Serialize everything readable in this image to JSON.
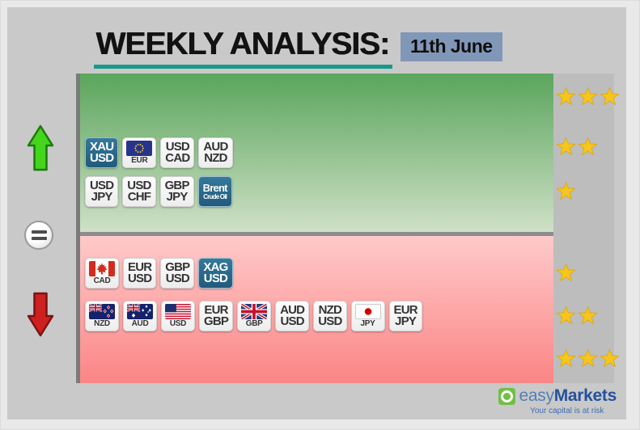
{
  "header": {
    "title": "WEEKLY ANALYSIS:",
    "date": "11th June"
  },
  "rows": [
    {
      "section": "bullish",
      "stars": 3,
      "badges": []
    },
    {
      "section": "bullish",
      "stars": 2,
      "badges": [
        {
          "type": "metal",
          "line1": "XAU",
          "line2": "USD"
        },
        {
          "type": "flag",
          "flag": "EUR",
          "label": "EUR"
        },
        {
          "type": "pair",
          "line1": "USD",
          "line2": "CAD"
        },
        {
          "type": "pair",
          "line1": "AUD",
          "line2": "NZD"
        }
      ]
    },
    {
      "section": "bullish",
      "stars": 1,
      "badges": [
        {
          "type": "pair",
          "line1": "USD",
          "line2": "JPY"
        },
        {
          "type": "pair",
          "line1": "USD",
          "line2": "CHF"
        },
        {
          "type": "pair",
          "line1": "GBP",
          "line2": "JPY"
        },
        {
          "type": "commodity",
          "line1": "Brent",
          "line2": "Crude Oil"
        }
      ]
    },
    {
      "section": "bearish",
      "stars": 1,
      "badges": [
        {
          "type": "flag",
          "flag": "CAD",
          "label": "CAD"
        },
        {
          "type": "pair",
          "line1": "EUR",
          "line2": "USD"
        },
        {
          "type": "pair",
          "line1": "GBP",
          "line2": "USD"
        },
        {
          "type": "metal",
          "line1": "XAG",
          "line2": "USD"
        }
      ]
    },
    {
      "section": "bearish",
      "stars": 2,
      "badges": [
        {
          "type": "flag",
          "flag": "NZD",
          "label": "NZD"
        },
        {
          "type": "flag",
          "flag": "AUD",
          "label": "AUD"
        },
        {
          "type": "flag",
          "flag": "USD",
          "label": "USD"
        },
        {
          "type": "pair",
          "line1": "EUR",
          "line2": "GBP"
        },
        {
          "type": "flag",
          "flag": "GBP",
          "label": "GBP"
        },
        {
          "type": "pair",
          "line1": "AUD",
          "line2": "USD"
        },
        {
          "type": "pair",
          "line1": "NZD",
          "line2": "USD"
        },
        {
          "type": "flag",
          "flag": "JPY",
          "label": "JPY"
        },
        {
          "type": "pair",
          "line1": "EUR",
          "line2": "JPY"
        }
      ]
    },
    {
      "section": "bearish",
      "stars": 3,
      "badges": []
    }
  ],
  "footer": {
    "brand_easy": "easy",
    "brand_markets": "Markets",
    "tagline": "Your capital is at risk"
  },
  "colors": {
    "canvas": "#c9c9c9",
    "accent_teal": "#18998b",
    "date_bg": "#8197b7",
    "bullish_top": "#5aa55c",
    "bullish_bottom": "#cfe0c6",
    "bearish_top": "#ffcaca",
    "bearish_bottom": "#fb8585",
    "divider": "#8f8a8f",
    "star_col": "#bdbdbd",
    "badge_blue_top": "#35799b",
    "badge_blue_bottom": "#215a7c",
    "star": "#f6c51e",
    "up_arrow": "#44d51c",
    "down_arrow": "#cf2020",
    "brand_green": "#72bf44",
    "brand_blue": "#24529e",
    "brand_light_blue": "#5580b3"
  }
}
